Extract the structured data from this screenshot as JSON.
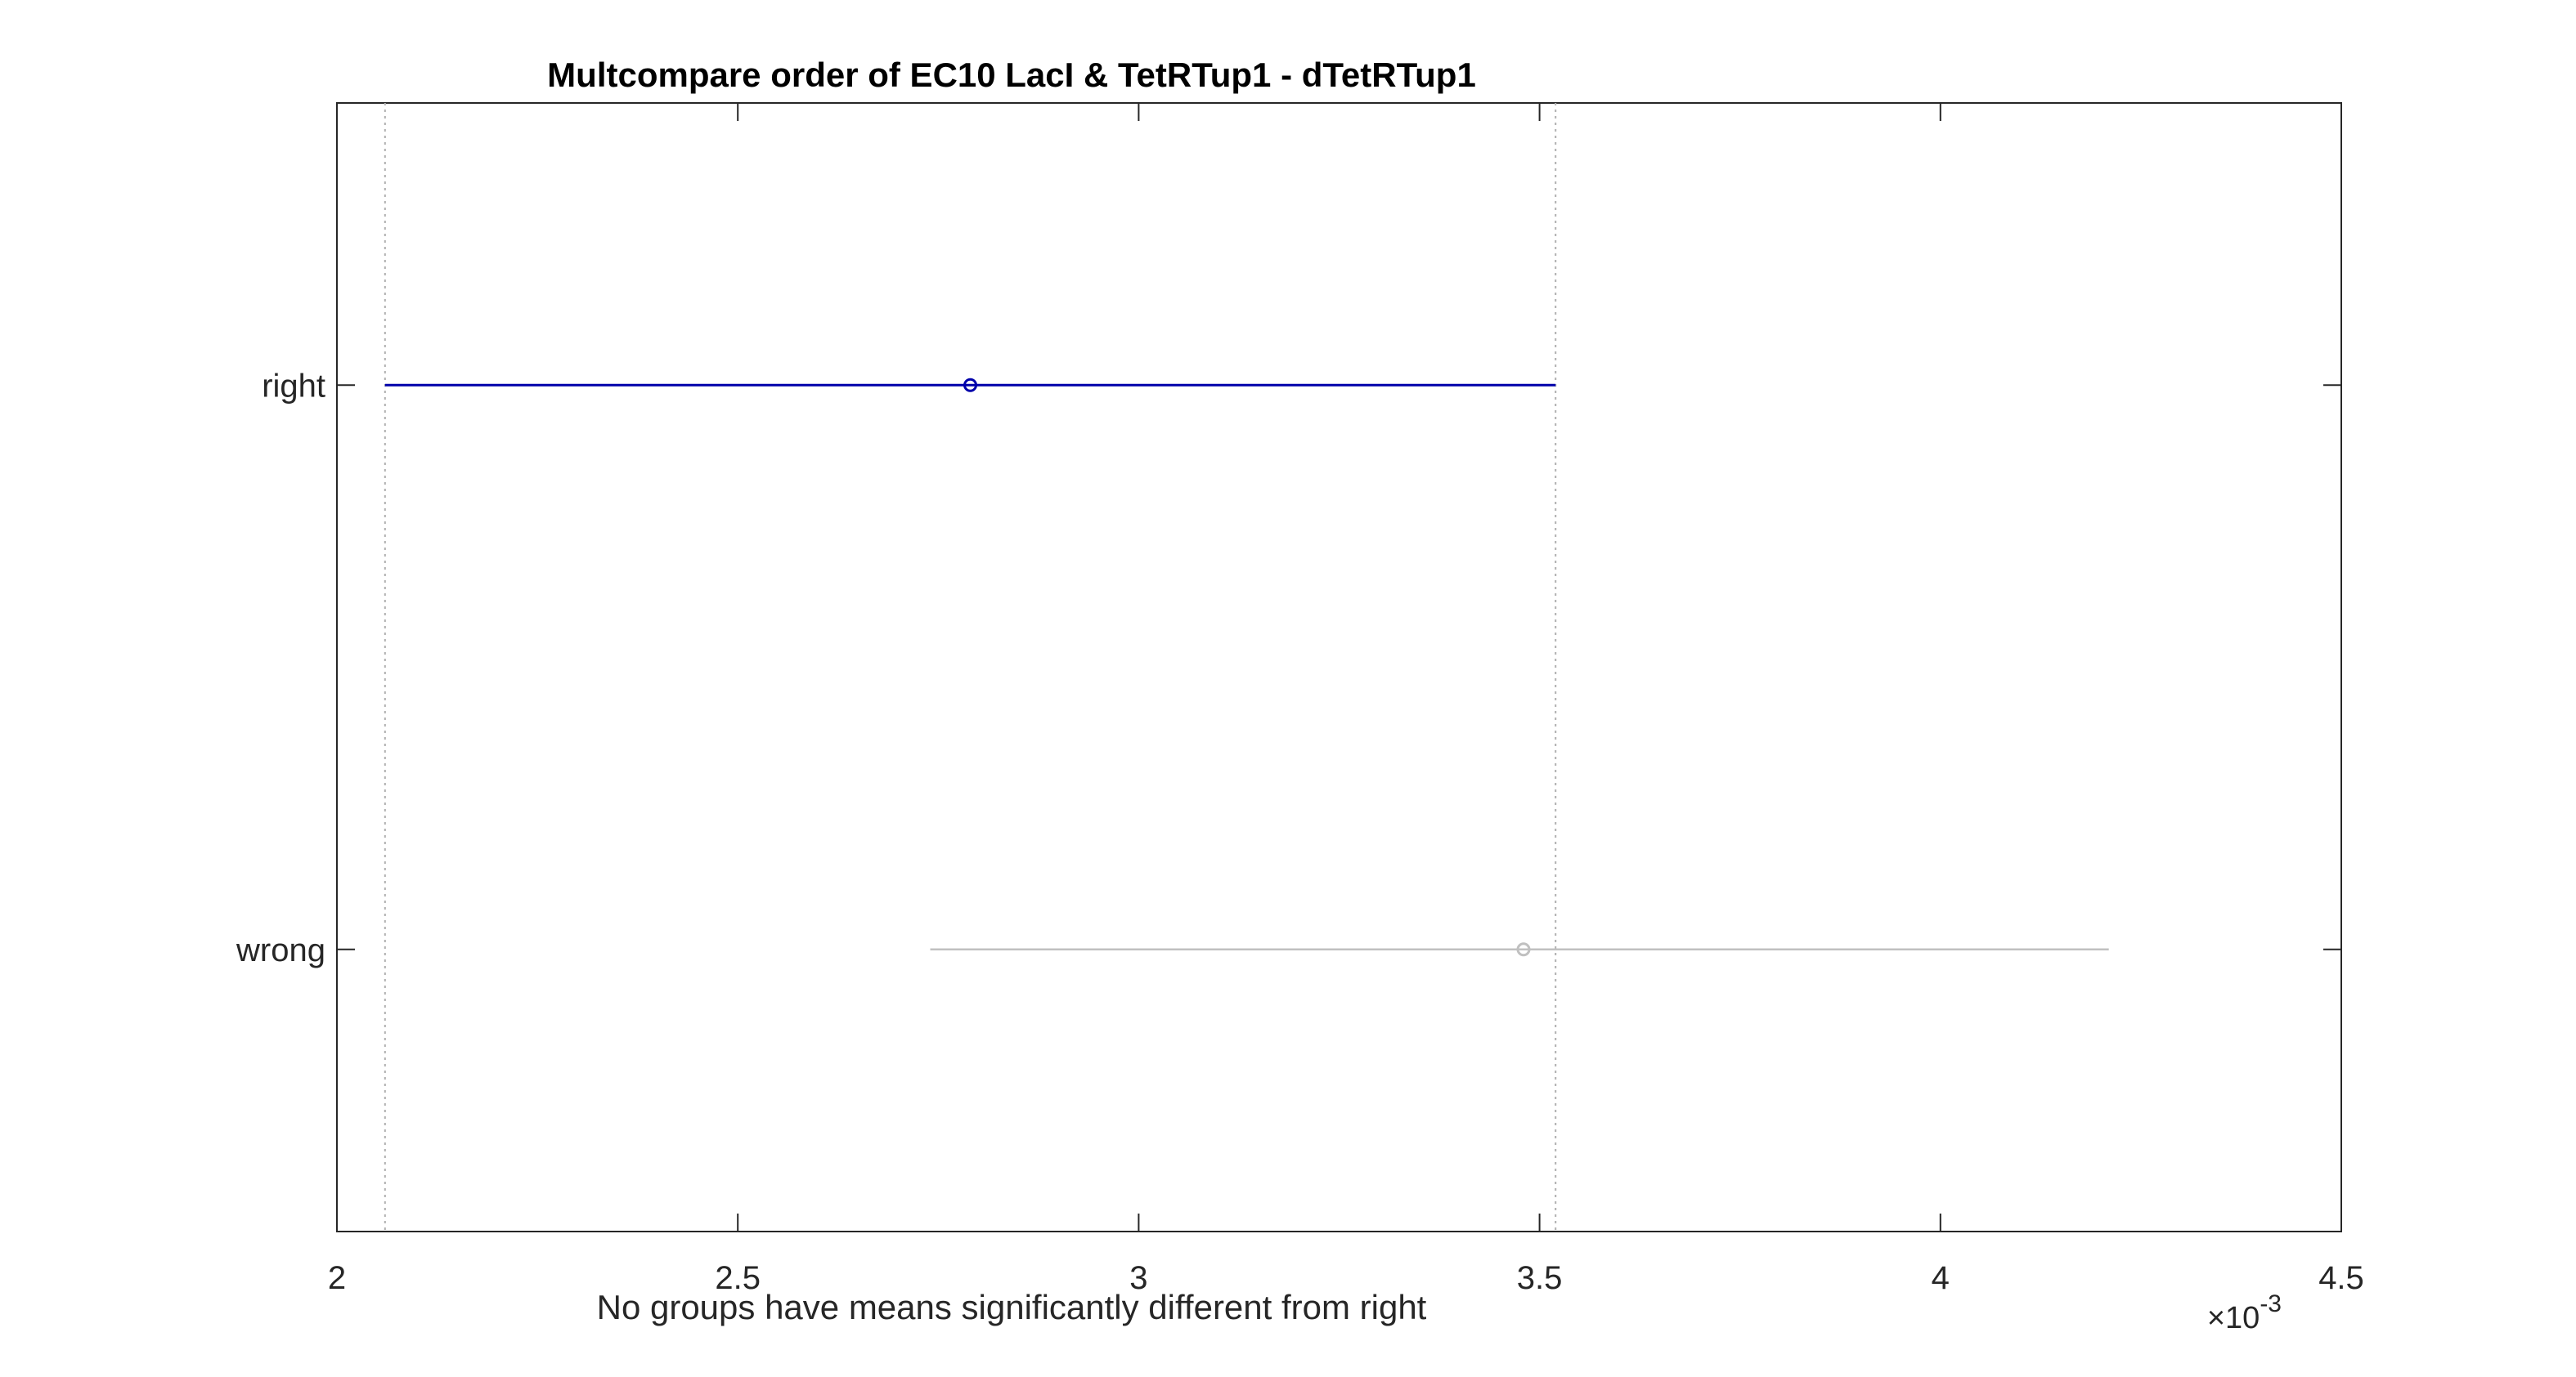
{
  "chart_data": {
    "type": "multcompare-interval",
    "title": "Multcompare order of EC10 LacI & TetRTup1 - dTetRTup1",
    "xlabel": "No groups have means significantly different from right",
    "exponent_label": {
      "base": "×10",
      "power": "-3"
    },
    "xlim": [
      0.002,
      0.0045
    ],
    "x_ticks": [
      0.002,
      0.0025,
      0.003,
      0.0035,
      0.004,
      0.0045
    ],
    "x_tick_labels": [
      "2",
      "2.5",
      "3",
      "3.5",
      "4",
      "4.5"
    ],
    "groups": [
      {
        "label": "right",
        "mean": 0.00279,
        "lower": 0.00206,
        "upper": 0.00352,
        "color": "#0000aa",
        "selected": true
      },
      {
        "label": "wrong",
        "mean": 0.00348,
        "lower": 0.00274,
        "upper": 0.00421,
        "color": "#c0c0c0",
        "selected": false
      }
    ],
    "reference_lines": [
      0.00206,
      0.00352
    ],
    "grid": false
  }
}
